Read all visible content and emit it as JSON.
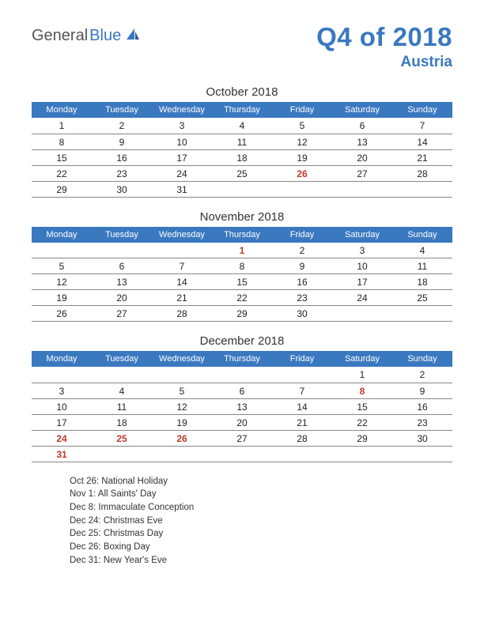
{
  "logo": {
    "part1": "General",
    "part2": "Blue"
  },
  "title": "Q4 of 2018",
  "subtitle": "Austria",
  "colors": {
    "brand": "#3a78c0",
    "header_bg": "#3a78c0",
    "header_fg": "#ffffff",
    "cell_border": "#888888",
    "text": "#222222",
    "holiday": "#c0392b",
    "background": "#ffffff"
  },
  "day_headers": [
    "Monday",
    "Tuesday",
    "Wednesday",
    "Thursday",
    "Friday",
    "Saturday",
    "Sunday"
  ],
  "months": [
    {
      "title": "October 2018",
      "weeks": [
        [
          {
            "d": "1"
          },
          {
            "d": "2"
          },
          {
            "d": "3"
          },
          {
            "d": "4"
          },
          {
            "d": "5"
          },
          {
            "d": "6"
          },
          {
            "d": "7"
          }
        ],
        [
          {
            "d": "8"
          },
          {
            "d": "9"
          },
          {
            "d": "10"
          },
          {
            "d": "11"
          },
          {
            "d": "12"
          },
          {
            "d": "13"
          },
          {
            "d": "14"
          }
        ],
        [
          {
            "d": "15"
          },
          {
            "d": "16"
          },
          {
            "d": "17"
          },
          {
            "d": "18"
          },
          {
            "d": "19"
          },
          {
            "d": "20"
          },
          {
            "d": "21"
          }
        ],
        [
          {
            "d": "22"
          },
          {
            "d": "23"
          },
          {
            "d": "24"
          },
          {
            "d": "25"
          },
          {
            "d": "26",
            "h": true
          },
          {
            "d": "27"
          },
          {
            "d": "28"
          }
        ],
        [
          {
            "d": "29"
          },
          {
            "d": "30"
          },
          {
            "d": "31"
          },
          {
            "d": ""
          },
          {
            "d": ""
          },
          {
            "d": ""
          },
          {
            "d": ""
          }
        ]
      ]
    },
    {
      "title": "November 2018",
      "weeks": [
        [
          {
            "d": ""
          },
          {
            "d": ""
          },
          {
            "d": ""
          },
          {
            "d": "1",
            "h": true
          },
          {
            "d": "2"
          },
          {
            "d": "3"
          },
          {
            "d": "4"
          }
        ],
        [
          {
            "d": "5"
          },
          {
            "d": "6"
          },
          {
            "d": "7"
          },
          {
            "d": "8"
          },
          {
            "d": "9"
          },
          {
            "d": "10"
          },
          {
            "d": "11"
          }
        ],
        [
          {
            "d": "12"
          },
          {
            "d": "13"
          },
          {
            "d": "14"
          },
          {
            "d": "15"
          },
          {
            "d": "16"
          },
          {
            "d": "17"
          },
          {
            "d": "18"
          }
        ],
        [
          {
            "d": "19"
          },
          {
            "d": "20"
          },
          {
            "d": "21"
          },
          {
            "d": "22"
          },
          {
            "d": "23"
          },
          {
            "d": "24"
          },
          {
            "d": "25"
          }
        ],
        [
          {
            "d": "26"
          },
          {
            "d": "27"
          },
          {
            "d": "28"
          },
          {
            "d": "29"
          },
          {
            "d": "30"
          },
          {
            "d": ""
          },
          {
            "d": ""
          }
        ]
      ]
    },
    {
      "title": "December 2018",
      "weeks": [
        [
          {
            "d": ""
          },
          {
            "d": ""
          },
          {
            "d": ""
          },
          {
            "d": ""
          },
          {
            "d": ""
          },
          {
            "d": "1"
          },
          {
            "d": "2"
          }
        ],
        [
          {
            "d": "3"
          },
          {
            "d": "4"
          },
          {
            "d": "5"
          },
          {
            "d": "6"
          },
          {
            "d": "7"
          },
          {
            "d": "8",
            "h": true
          },
          {
            "d": "9"
          }
        ],
        [
          {
            "d": "10"
          },
          {
            "d": "11"
          },
          {
            "d": "12"
          },
          {
            "d": "13"
          },
          {
            "d": "14"
          },
          {
            "d": "15"
          },
          {
            "d": "16"
          }
        ],
        [
          {
            "d": "17"
          },
          {
            "d": "18"
          },
          {
            "d": "19"
          },
          {
            "d": "20"
          },
          {
            "d": "21"
          },
          {
            "d": "22"
          },
          {
            "d": "23"
          }
        ],
        [
          {
            "d": "24",
            "h": true
          },
          {
            "d": "25",
            "h": true
          },
          {
            "d": "26",
            "h": true
          },
          {
            "d": "27"
          },
          {
            "d": "28"
          },
          {
            "d": "29"
          },
          {
            "d": "30"
          }
        ],
        [
          {
            "d": "31",
            "h": true
          },
          {
            "d": ""
          },
          {
            "d": ""
          },
          {
            "d": ""
          },
          {
            "d": ""
          },
          {
            "d": ""
          },
          {
            "d": ""
          }
        ]
      ]
    }
  ],
  "holiday_list": [
    "Oct 26: National Holiday",
    "Nov 1: All Saints' Day",
    "Dec 8: Immaculate Conception",
    "Dec 24: Christmas Eve",
    "Dec 25: Christmas Day",
    "Dec 26: Boxing Day",
    "Dec 31: New Year's Eve"
  ]
}
